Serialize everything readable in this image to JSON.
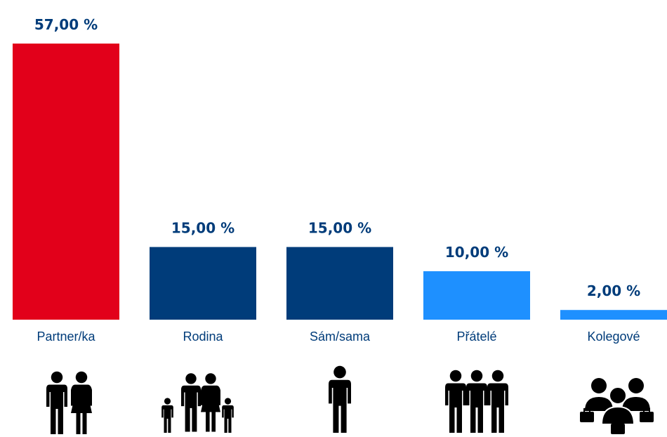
{
  "chart_data": {
    "type": "bar",
    "categories": [
      "Partner/ka",
      "Rodina",
      "Sám/sama",
      "Přátelé",
      "Kolegové"
    ],
    "values": [
      57,
      15,
      15,
      10,
      2
    ],
    "value_labels": [
      "57,00 %",
      "15,00 %",
      "15,00 %",
      "10,00 %",
      "2,00 %"
    ],
    "colors": [
      "#e2001a",
      "#003c7a",
      "#003c7a",
      "#1e90ff",
      "#1e90ff"
    ]
  }
}
